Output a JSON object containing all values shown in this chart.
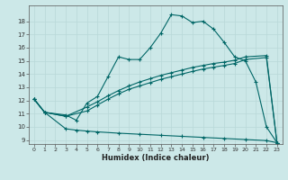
{
  "xlabel": "Humidex (Indice chaleur)",
  "bg_color": "#cce8e8",
  "grid_color": "#b8d8d8",
  "line_color": "#006666",
  "xlim": [
    -0.5,
    23.5
  ],
  "ylim": [
    8.7,
    19.2
  ],
  "xticks": [
    0,
    1,
    2,
    3,
    4,
    5,
    6,
    7,
    8,
    9,
    10,
    11,
    12,
    13,
    14,
    15,
    16,
    17,
    18,
    19,
    20,
    21,
    22,
    23
  ],
  "yticks": [
    9,
    10,
    11,
    12,
    13,
    14,
    15,
    16,
    17,
    18
  ],
  "line1_x": [
    0,
    1,
    3,
    4,
    5,
    6,
    7,
    8,
    9,
    10,
    11,
    12,
    13,
    14,
    15,
    16,
    17,
    18,
    19,
    20,
    21,
    22,
    23
  ],
  "line1_y": [
    12.1,
    11.1,
    10.9,
    10.5,
    11.8,
    12.3,
    13.8,
    15.3,
    15.1,
    15.1,
    16.0,
    17.1,
    18.5,
    18.4,
    17.9,
    18.0,
    17.4,
    16.4,
    15.3,
    15.0,
    13.4,
    10.0,
    8.8
  ],
  "line2_x": [
    0,
    1,
    3,
    4,
    5,
    6,
    8,
    10,
    12,
    14,
    16,
    18,
    20,
    22,
    23
  ],
  "line2_y": [
    12.1,
    11.1,
    9.85,
    9.75,
    9.68,
    9.62,
    9.52,
    9.44,
    9.36,
    9.28,
    9.2,
    9.12,
    9.04,
    8.96,
    8.8
  ],
  "line3_x": [
    0,
    1,
    3,
    5,
    6,
    7,
    8,
    9,
    10,
    11,
    12,
    13,
    14,
    15,
    16,
    17,
    18,
    19,
    20,
    22,
    23
  ],
  "line3_y": [
    12.1,
    11.1,
    10.8,
    11.5,
    11.9,
    12.35,
    12.75,
    13.1,
    13.4,
    13.65,
    13.9,
    14.1,
    14.3,
    14.5,
    14.65,
    14.8,
    14.9,
    15.05,
    15.3,
    15.4,
    8.8
  ],
  "line4_x": [
    0,
    1,
    3,
    5,
    6,
    7,
    8,
    9,
    10,
    11,
    12,
    13,
    14,
    15,
    16,
    17,
    18,
    19,
    20,
    22,
    23
  ],
  "line4_y": [
    12.1,
    11.1,
    10.8,
    11.2,
    11.65,
    12.1,
    12.5,
    12.85,
    13.1,
    13.35,
    13.6,
    13.8,
    14.0,
    14.2,
    14.38,
    14.52,
    14.65,
    14.8,
    15.1,
    15.25,
    8.8
  ]
}
